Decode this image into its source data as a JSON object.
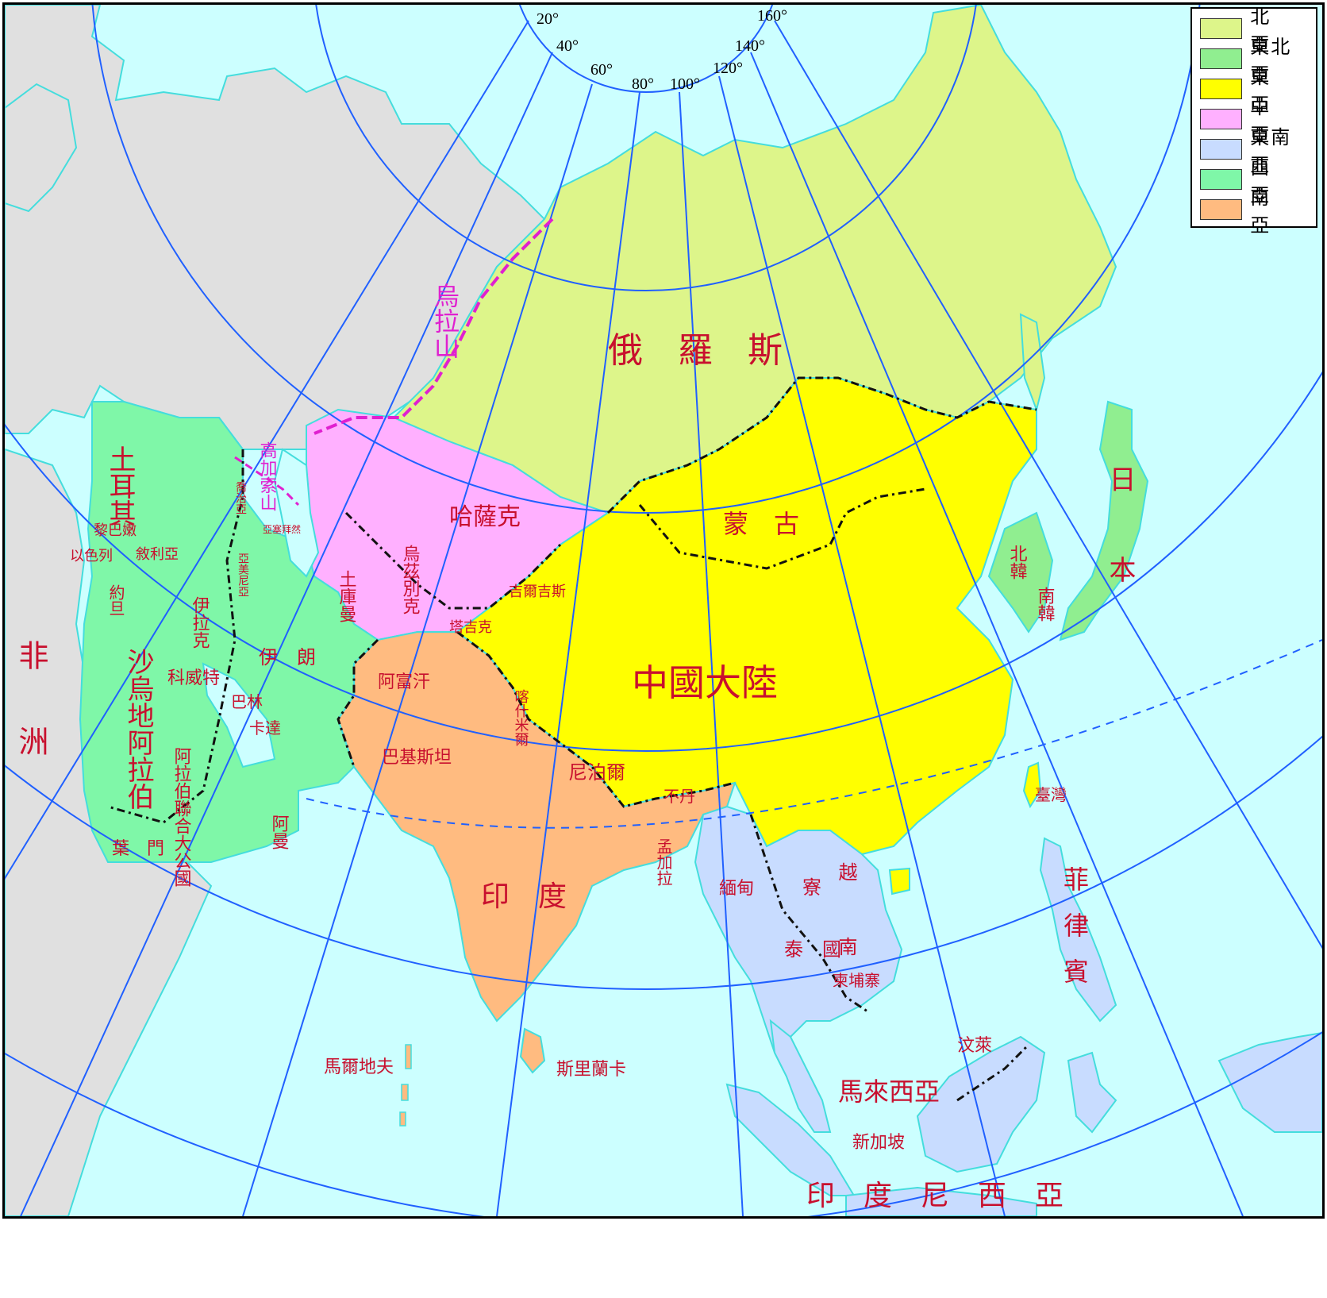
{
  "legend": {
    "items": [
      {
        "label": "北　亞",
        "color": "#ddf58a"
      },
      {
        "label": "東北亞",
        "color": "#90ee90"
      },
      {
        "label": "東　亞",
        "color": "#ffff00"
      },
      {
        "label": "中　亞",
        "color": "#ffb0ff"
      },
      {
        "label": "東南亞",
        "color": "#c8dcff"
      },
      {
        "label": "西　亞",
        "color": "#7ff7a8"
      },
      {
        "label": "南　亞",
        "color": "#ffbb80"
      }
    ]
  },
  "colors": {
    "ocean": "#ccffff",
    "other_land": "#e0e0e0",
    "graticule": "#2060ff",
    "coast": "#44dddd",
    "label": "#c8102e",
    "mountain": "#e020d0"
  },
  "longitude_labels": [
    "20°",
    "40°",
    "60°",
    "80°",
    "100°",
    "120°",
    "140°",
    "160°"
  ],
  "mountains": {
    "ural": "烏拉山",
    "caucasus": "高加索山"
  },
  "labels": {
    "russia": "俄　羅　斯",
    "china": "中國大陸",
    "mongolia": "蒙　古",
    "kazakhstan": "哈薩克",
    "turkmenistan": "土庫曼",
    "uzbekistan": "烏茲別克",
    "kyrgyzstan": "吉爾吉斯",
    "tajikistan": "塔吉克",
    "afghanistan": "阿富汗",
    "pakistan": "巴基斯坦",
    "kashmir": "喀什米爾",
    "nepal": "尼泊爾",
    "bhutan": "不丹",
    "bangladesh": "孟加拉",
    "india": "印　度",
    "sri_lanka": "斯里蘭卡",
    "maldives": "馬爾地夫",
    "turkey": "土耳其",
    "georgia": "喬治亞",
    "azerbaijan": "亞塞拜然",
    "armenia": "亞美尼亞",
    "lebanon": "黎巴嫩",
    "syria": "敘利亞",
    "israel": "以色列",
    "jordan": "約旦",
    "iraq": "伊拉克",
    "iran": "伊　朗",
    "kuwait": "科威特",
    "bahrain": "巴林",
    "qatar": "卡達",
    "saudi": "沙烏地阿拉伯",
    "uae": "阿拉伯聯合大公國",
    "oman": "阿曼",
    "yemen": "葉　門",
    "africa": "非洲",
    "japan": "日本",
    "north_korea": "北韓",
    "south_korea": "南韓",
    "taiwan": "臺灣",
    "philippines": "菲律賓",
    "myanmar": "緬甸",
    "laos": "寮",
    "vietnam": "越南",
    "thailand": "泰　國",
    "cambodia": "柬埔寨",
    "malaysia": "馬來西亞",
    "singapore": "新加坡",
    "brunei": "汶萊",
    "indonesia": "印　度　尼　西　亞"
  }
}
